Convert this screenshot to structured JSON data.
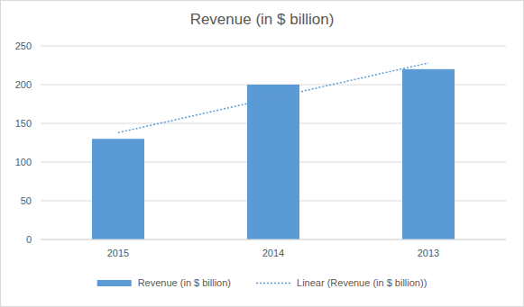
{
  "chart_data": {
    "type": "bar",
    "title": "Revenue (in $ billion)",
    "categories": [
      "2015",
      "2014",
      "2013"
    ],
    "series": [
      {
        "name": "Revenue (in $ billion)",
        "color": "#5b9bd5",
        "values": [
          130,
          200,
          220
        ]
      },
      {
        "name": "Linear (Revenue (in $ billion))",
        "type": "line",
        "line_style": "dotted",
        "color": "#5b9bd5",
        "values": [
          138,
          183,
          228
        ]
      }
    ],
    "ylim": [
      0,
      250
    ],
    "yticks": [
      0,
      50,
      100,
      150,
      200,
      250
    ],
    "grid": true,
    "legend": "bottom"
  }
}
